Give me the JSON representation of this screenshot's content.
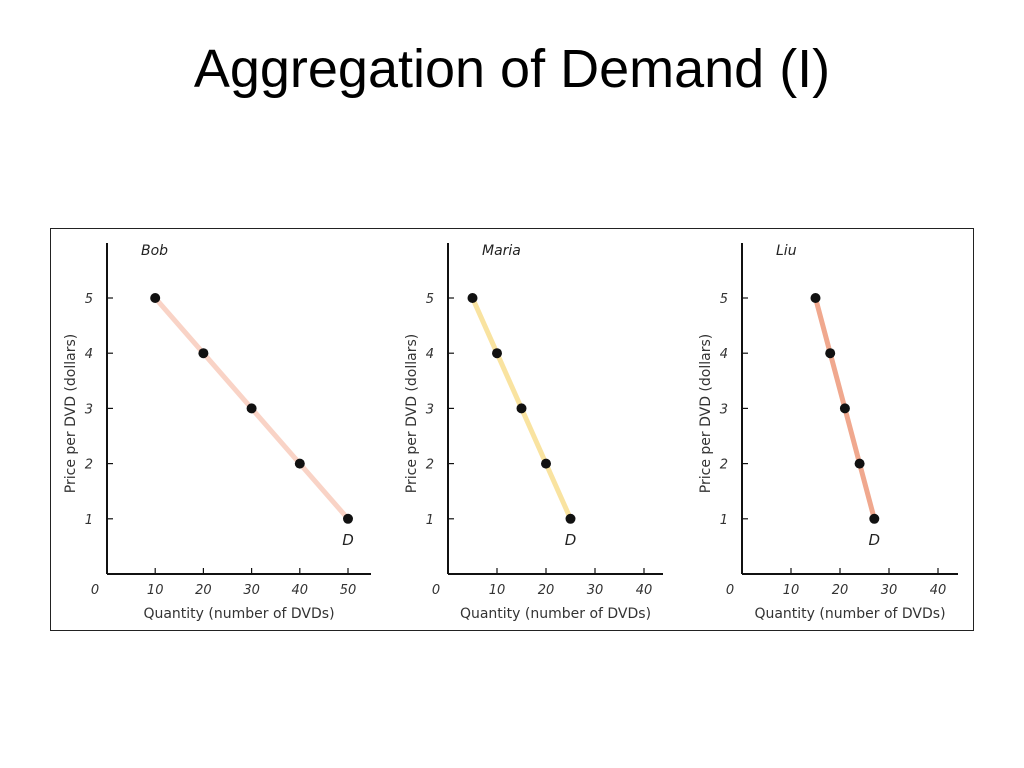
{
  "slide": {
    "title": "Aggregation of Demand (I)"
  },
  "chart_data": [
    {
      "type": "line",
      "title": "Bob",
      "xlabel": "Quantity (number of DVDs)",
      "ylabel": "Price per DVD (dollars)",
      "xlim": [
        0,
        55
      ],
      "ylim": [
        0,
        6
      ],
      "xticks": [
        "0",
        "10",
        "20",
        "30",
        "40",
        "50"
      ],
      "yticks": [
        "1",
        "2",
        "3",
        "4",
        "5"
      ],
      "series": [
        {
          "name": "D",
          "color": "#f9d3c6",
          "x": [
            10,
            20,
            30,
            40,
            50
          ],
          "y": [
            5,
            4,
            3,
            2,
            1
          ]
        }
      ],
      "grid": false
    },
    {
      "type": "line",
      "title": "Maria",
      "xlabel": "Quantity (number of DVDs)",
      "ylabel": "Price per DVD (dollars)",
      "xlim": [
        0,
        45
      ],
      "ylim": [
        0,
        6
      ],
      "xticks": [
        "0",
        "10",
        "20",
        "30",
        "40"
      ],
      "yticks": [
        "1",
        "2",
        "3",
        "4",
        "5"
      ],
      "series": [
        {
          "name": "D",
          "color": "#f9e3a0",
          "x": [
            5,
            10,
            15,
            20,
            25
          ],
          "y": [
            5,
            4,
            3,
            2,
            1
          ]
        }
      ],
      "grid": false
    },
    {
      "type": "line",
      "title": "Liu",
      "xlabel": "Quantity (number of DVDs)",
      "ylabel": "Price per DVD (dollars)",
      "xlim": [
        0,
        45
      ],
      "ylim": [
        0,
        6
      ],
      "xticks": [
        "0",
        "10",
        "20",
        "30",
        "40"
      ],
      "yticks": [
        "1",
        "2",
        "3",
        "4",
        "5"
      ],
      "series": [
        {
          "name": "D",
          "color": "#f0a88e",
          "x": [
            15,
            18,
            21,
            24,
            27
          ],
          "y": [
            5,
            4,
            3,
            2,
            1
          ]
        }
      ],
      "grid": false
    }
  ]
}
